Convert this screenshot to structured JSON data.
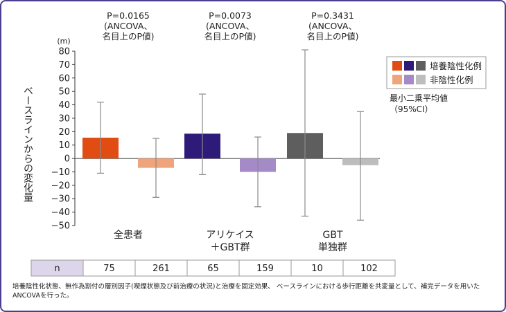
{
  "chart_data": {
    "type": "bar",
    "ylabel": "ベースラインからの変化量",
    "yunit": "(m)",
    "ylim": [
      -50,
      80
    ],
    "yticks": [
      80,
      70,
      60,
      50,
      40,
      30,
      20,
      10,
      0,
      -10,
      -20,
      -30,
      -40,
      -50
    ],
    "groups": [
      {
        "label_lines": [
          "全患者"
        ],
        "pvalue_lines": [
          "P=0.0165",
          "(ANCOVA、",
          "名目上のP値)"
        ],
        "bars": [
          {
            "series": "培養陰性化例",
            "value": 15.5,
            "ci_low": -11,
            "ci_high": 42,
            "color": "#e04c12"
          },
          {
            "series": "非陰性化例",
            "value": -7,
            "ci_low": -29,
            "ci_high": 15,
            "color": "#f0a47c"
          }
        ]
      },
      {
        "label_lines": [
          "アリケイス",
          "＋GBT群"
        ],
        "pvalue_lines": [
          "P=0.0073",
          "(ANCOVA、",
          "名目上のP値)"
        ],
        "bars": [
          {
            "series": "培養陰性化例",
            "value": 18.5,
            "ci_low": -12,
            "ci_high": 48,
            "color": "#2e1a78"
          },
          {
            "series": "非陰性化例",
            "value": -10,
            "ci_low": -36,
            "ci_high": 16,
            "color": "#a48ac6"
          }
        ]
      },
      {
        "label_lines": [
          "GBT",
          "単独群"
        ],
        "pvalue_lines": [
          "P=0.3431",
          "(ANCOVA、",
          "名目上のP値)"
        ],
        "bars": [
          {
            "series": "培養陰性化例",
            "value": 19,
            "ci_low": -43,
            "ci_high": 81,
            "color": "#5e5e5e"
          },
          {
            "series": "非陰性化例",
            "value": -5,
            "ci_low": -46,
            "ci_high": 35,
            "color": "#bdbdbd"
          }
        ]
      }
    ],
    "legend": {
      "position": "top-right",
      "entries": [
        {
          "label": "培養陰性化例",
          "colors": [
            "#e04c12",
            "#2e1a78",
            "#5e5e5e"
          ]
        },
        {
          "label": "非陰性化例",
          "colors": [
            "#f0a47c",
            "#a48ac6",
            "#bdbdbd"
          ]
        }
      ],
      "note_lines": [
        "最小二乗平均値",
        "（95%CI）"
      ]
    },
    "n_row": {
      "header": "n",
      "values": [
        "75",
        "261",
        "65",
        "159",
        "10",
        "102"
      ]
    }
  },
  "footnote": "培養陰性化状態、無作為割付の層別因子(喫煙状態及び前治療の状況)と治療を固定効果、 ベースラインにおける歩行距離を共変量として、補完データを用いたANCOVAを行った。"
}
